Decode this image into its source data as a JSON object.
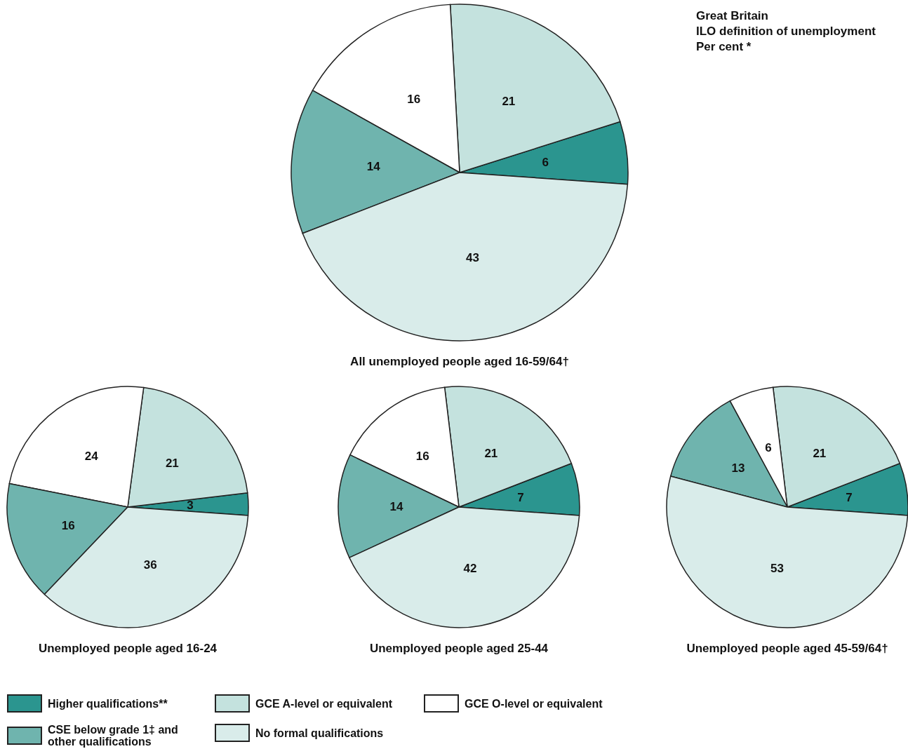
{
  "chart_data": [
    {
      "type": "pie",
      "title": "All unemployed people aged 16-59/64†",
      "annotations": [
        "Great Britain",
        "ILO definition of unemployment",
        "Per cent *"
      ],
      "categories": [
        "Higher qualifications**",
        "GCE A-level or equivalent",
        "GCE O-level or equivalent",
        "CSE below grade 1‡ and other qualifications",
        "No formal qualifications"
      ],
      "values": [
        6,
        21,
        16,
        14,
        43
      ],
      "colors": [
        "#2b958f",
        "#c4e2de",
        "#ffffff",
        "#6fb4ae",
        "#d9ecea"
      ],
      "data_labels": true,
      "legend": "bottom"
    },
    {
      "type": "pie",
      "title": "Unemployed people aged 16-24",
      "categories": [
        null,
        null,
        null,
        null,
        null
      ],
      "values": [
        3,
        21,
        24,
        16,
        36
      ],
      "colors": [
        "#2b958f",
        "#c4e2de",
        "#ffffff",
        "#6fb4ae",
        "#d9ecea"
      ],
      "data_labels": true
    },
    {
      "type": "pie",
      "title": "Unemployed people aged 25-44",
      "categories": [
        null,
        null,
        null,
        null,
        null
      ],
      "values": [
        7,
        21,
        16,
        14,
        42
      ],
      "colors": [
        "#2b958f",
        "#c4e2de",
        "#ffffff",
        "#6fb4ae",
        "#d9ecea"
      ],
      "data_labels": true
    },
    {
      "type": "pie",
      "title": "Unemployed people aged 45-59/64†",
      "categories": [
        null,
        null,
        null,
        null,
        null
      ],
      "values": [
        7,
        21,
        6,
        13,
        53
      ],
      "colors": [
        "#2b958f",
        "#c4e2de",
        "#ffffff",
        "#6fb4ae",
        "#d9ecea"
      ],
      "data_labels": true
    }
  ]
}
